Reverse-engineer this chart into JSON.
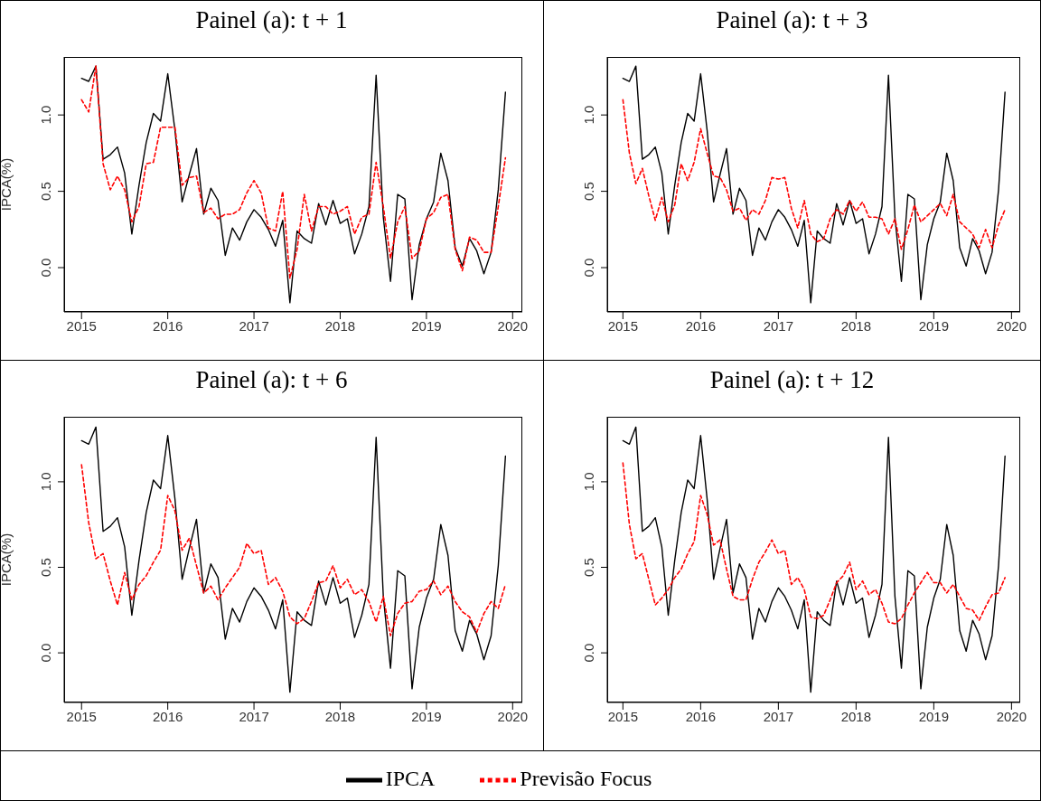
{
  "chart_data": [
    {
      "type": "line",
      "title": "Painel (a): t + 1",
      "ylabel": "IPCA(%)",
      "legend": "bottom",
      "marker": "none",
      "x": [
        "2015-01",
        "2015-02",
        "2015-03",
        "2015-04",
        "2015-05",
        "2015-06",
        "2015-07",
        "2015-08",
        "2015-09",
        "2015-10",
        "2015-11",
        "2015-12",
        "2016-01",
        "2016-02",
        "2016-03",
        "2016-04",
        "2016-05",
        "2016-06",
        "2016-07",
        "2016-08",
        "2016-09",
        "2016-10",
        "2016-11",
        "2016-12",
        "2017-01",
        "2017-02",
        "2017-03",
        "2017-04",
        "2017-05",
        "2017-06",
        "2017-07",
        "2017-08",
        "2017-09",
        "2017-10",
        "2017-11",
        "2017-12",
        "2018-01",
        "2018-02",
        "2018-03",
        "2018-04",
        "2018-05",
        "2018-06",
        "2018-07",
        "2018-08",
        "2018-09",
        "2018-10",
        "2018-11",
        "2018-12",
        "2019-01",
        "2019-02",
        "2019-03",
        "2019-04",
        "2019-05",
        "2019-06",
        "2019-07",
        "2019-08",
        "2019-09",
        "2019-10",
        "2019-11",
        "2019-12"
      ],
      "xlim": [
        "2014-10-19",
        "2020-02-11"
      ],
      "xticks": [
        "2015",
        "2016",
        "2017",
        "2018",
        "2019",
        "2020"
      ],
      "ylim": [
        -0.29,
        1.38
      ],
      "yticks": [
        {
          "value": 0,
          "label": "0.0"
        },
        {
          "value": 0.5,
          "label": "0.5"
        },
        {
          "value": 1,
          "label": "1.0"
        }
      ],
      "series": [
        {
          "name": "IPCA",
          "color": "#000000",
          "line_style": "solid",
          "values": [
            1.24,
            1.22,
            1.32,
            0.71,
            0.74,
            0.79,
            0.62,
            0.22,
            0.54,
            0.82,
            1.01,
            0.96,
            1.27,
            0.9,
            0.43,
            0.61,
            0.78,
            0.35,
            0.52,
            0.44,
            0.08,
            0.26,
            0.18,
            0.3,
            0.38,
            0.33,
            0.25,
            0.14,
            0.31,
            -0.23,
            0.24,
            0.19,
            0.16,
            0.42,
            0.28,
            0.44,
            0.29,
            0.32,
            0.09,
            0.22,
            0.4,
            1.26,
            0.33,
            -0.09,
            0.48,
            0.45,
            -0.21,
            0.15,
            0.32,
            0.43,
            0.75,
            0.57,
            0.13,
            0.01,
            0.19,
            0.11,
            -0.04,
            0.1,
            0.51,
            1.15
          ]
        },
        {
          "name": "Previsão Focus",
          "color": "#ff0000",
          "line_style": "dashed",
          "values": [
            1.1,
            1.02,
            1.32,
            0.68,
            0.51,
            0.6,
            0.51,
            0.3,
            0.4,
            0.68,
            0.69,
            0.92,
            0.92,
            0.92,
            0.54,
            0.59,
            0.6,
            0.36,
            0.39,
            0.32,
            0.35,
            0.35,
            0.38,
            0.49,
            0.57,
            0.49,
            0.26,
            0.24,
            0.5,
            -0.07,
            0.12,
            0.48,
            0.24,
            0.4,
            0.4,
            0.35,
            0.37,
            0.4,
            0.22,
            0.33,
            0.35,
            0.69,
            0.4,
            0.06,
            0.3,
            0.4,
            0.06,
            0.11,
            0.32,
            0.36,
            0.46,
            0.48,
            0.12,
            -0.02,
            0.2,
            0.18,
            0.1,
            0.1,
            0.4,
            0.72
          ]
        }
      ]
    },
    {
      "type": "line",
      "title": "Painel (a): t + 3",
      "marker": "none",
      "x": [
        "2015-01",
        "2015-02",
        "2015-03",
        "2015-04",
        "2015-05",
        "2015-06",
        "2015-07",
        "2015-08",
        "2015-09",
        "2015-10",
        "2015-11",
        "2015-12",
        "2016-01",
        "2016-02",
        "2016-03",
        "2016-04",
        "2016-05",
        "2016-06",
        "2016-07",
        "2016-08",
        "2016-09",
        "2016-10",
        "2016-11",
        "2016-12",
        "2017-01",
        "2017-02",
        "2017-03",
        "2017-04",
        "2017-05",
        "2017-06",
        "2017-07",
        "2017-08",
        "2017-09",
        "2017-10",
        "2017-11",
        "2017-12",
        "2018-01",
        "2018-02",
        "2018-03",
        "2018-04",
        "2018-05",
        "2018-06",
        "2018-07",
        "2018-08",
        "2018-09",
        "2018-10",
        "2018-11",
        "2018-12",
        "2019-01",
        "2019-02",
        "2019-03",
        "2019-04",
        "2019-05",
        "2019-06",
        "2019-07",
        "2019-08",
        "2019-09",
        "2019-10",
        "2019-11",
        "2019-12"
      ],
      "xlim": [
        "2014-10-19",
        "2020-02-11"
      ],
      "xticks": [
        "2015",
        "2016",
        "2017",
        "2018",
        "2019",
        "2020"
      ],
      "ylim": [
        -0.29,
        1.38
      ],
      "yticks": [
        {
          "value": 0,
          "label": "0.0"
        },
        {
          "value": 0.5,
          "label": "0.5"
        },
        {
          "value": 1,
          "label": "1.0"
        }
      ],
      "series": [
        {
          "color": "#000000",
          "line_style": "solid",
          "values": [
            1.24,
            1.22,
            1.32,
            0.71,
            0.74,
            0.79,
            0.62,
            0.22,
            0.54,
            0.82,
            1.01,
            0.96,
            1.27,
            0.9,
            0.43,
            0.61,
            0.78,
            0.35,
            0.52,
            0.44,
            0.08,
            0.26,
            0.18,
            0.3,
            0.38,
            0.33,
            0.25,
            0.14,
            0.31,
            -0.23,
            0.24,
            0.19,
            0.16,
            0.42,
            0.28,
            0.44,
            0.29,
            0.32,
            0.09,
            0.22,
            0.4,
            1.26,
            0.33,
            -0.09,
            0.48,
            0.45,
            -0.21,
            0.15,
            0.32,
            0.43,
            0.75,
            0.57,
            0.13,
            0.01,
            0.19,
            0.11,
            -0.04,
            0.1,
            0.51,
            1.15
          ]
        },
        {
          "color": "#ff0000",
          "line_style": "dashed",
          "values": [
            1.1,
            0.75,
            0.55,
            0.65,
            0.47,
            0.31,
            0.46,
            0.3,
            0.41,
            0.68,
            0.57,
            0.69,
            0.91,
            0.75,
            0.6,
            0.59,
            0.51,
            0.37,
            0.39,
            0.31,
            0.38,
            0.35,
            0.44,
            0.59,
            0.58,
            0.59,
            0.39,
            0.26,
            0.44,
            0.22,
            0.17,
            0.19,
            0.32,
            0.38,
            0.35,
            0.44,
            0.37,
            0.43,
            0.33,
            0.33,
            0.32,
            0.22,
            0.32,
            0.12,
            0.25,
            0.41,
            0.3,
            0.34,
            0.38,
            0.42,
            0.34,
            0.48,
            0.3,
            0.26,
            0.22,
            0.13,
            0.25,
            0.13,
            0.28,
            0.38
          ]
        }
      ]
    },
    {
      "type": "line",
      "title": "Painel (a): t + 6",
      "ylabel": "IPCA(%)",
      "marker": "none",
      "x": [
        "2015-01",
        "2015-02",
        "2015-03",
        "2015-04",
        "2015-05",
        "2015-06",
        "2015-07",
        "2015-08",
        "2015-09",
        "2015-10",
        "2015-11",
        "2015-12",
        "2016-01",
        "2016-02",
        "2016-03",
        "2016-04",
        "2016-05",
        "2016-06",
        "2016-07",
        "2016-08",
        "2016-09",
        "2016-10",
        "2016-11",
        "2016-12",
        "2017-01",
        "2017-02",
        "2017-03",
        "2017-04",
        "2017-05",
        "2017-06",
        "2017-07",
        "2017-08",
        "2017-09",
        "2017-10",
        "2017-11",
        "2017-12",
        "2018-01",
        "2018-02",
        "2018-03",
        "2018-04",
        "2018-05",
        "2018-06",
        "2018-07",
        "2018-08",
        "2018-09",
        "2018-10",
        "2018-11",
        "2018-12",
        "2019-01",
        "2019-02",
        "2019-03",
        "2019-04",
        "2019-05",
        "2019-06",
        "2019-07",
        "2019-08",
        "2019-09",
        "2019-10",
        "2019-11",
        "2019-12"
      ],
      "xlim": [
        "2014-10-19",
        "2020-02-11"
      ],
      "xticks": [
        "2015",
        "2016",
        "2017",
        "2018",
        "2019",
        "2020"
      ],
      "ylim": [
        -0.29,
        1.38
      ],
      "yticks": [
        {
          "value": 0,
          "label": "0.0"
        },
        {
          "value": 0.5,
          "label": "0.5"
        },
        {
          "value": 1,
          "label": "1.0"
        }
      ],
      "series": [
        {
          "color": "#000000",
          "line_style": "solid",
          "values": [
            1.24,
            1.22,
            1.32,
            0.71,
            0.74,
            0.79,
            0.62,
            0.22,
            0.54,
            0.82,
            1.01,
            0.96,
            1.27,
            0.9,
            0.43,
            0.61,
            0.78,
            0.35,
            0.52,
            0.44,
            0.08,
            0.26,
            0.18,
            0.3,
            0.38,
            0.33,
            0.25,
            0.14,
            0.31,
            -0.23,
            0.24,
            0.19,
            0.16,
            0.42,
            0.28,
            0.44,
            0.29,
            0.32,
            0.09,
            0.22,
            0.4,
            1.26,
            0.33,
            -0.09,
            0.48,
            0.45,
            -0.21,
            0.15,
            0.32,
            0.43,
            0.75,
            0.57,
            0.13,
            0.01,
            0.19,
            0.11,
            -0.04,
            0.1,
            0.51,
            1.15
          ]
        },
        {
          "color": "#ff0000",
          "line_style": "dashed",
          "values": [
            1.1,
            0.76,
            0.55,
            0.58,
            0.42,
            0.28,
            0.47,
            0.31,
            0.4,
            0.45,
            0.53,
            0.6,
            0.92,
            0.83,
            0.6,
            0.67,
            0.51,
            0.35,
            0.39,
            0.31,
            0.38,
            0.44,
            0.5,
            0.64,
            0.58,
            0.6,
            0.4,
            0.44,
            0.36,
            0.21,
            0.17,
            0.2,
            0.3,
            0.41,
            0.42,
            0.51,
            0.38,
            0.43,
            0.34,
            0.37,
            0.3,
            0.18,
            0.33,
            0.1,
            0.23,
            0.29,
            0.3,
            0.36,
            0.37,
            0.42,
            0.34,
            0.39,
            0.3,
            0.24,
            0.21,
            0.12,
            0.23,
            0.3,
            0.26,
            0.4
          ]
        }
      ]
    },
    {
      "type": "line",
      "title": "Painel (a): t + 12",
      "marker": "none",
      "x": [
        "2015-01",
        "2015-02",
        "2015-03",
        "2015-04",
        "2015-05",
        "2015-06",
        "2015-07",
        "2015-08",
        "2015-09",
        "2015-10",
        "2015-11",
        "2015-12",
        "2016-01",
        "2016-02",
        "2016-03",
        "2016-04",
        "2016-05",
        "2016-06",
        "2016-07",
        "2016-08",
        "2016-09",
        "2016-10",
        "2016-11",
        "2016-12",
        "2017-01",
        "2017-02",
        "2017-03",
        "2017-04",
        "2017-05",
        "2017-06",
        "2017-07",
        "2017-08",
        "2017-09",
        "2017-10",
        "2017-11",
        "2017-12",
        "2018-01",
        "2018-02",
        "2018-03",
        "2018-04",
        "2018-05",
        "2018-06",
        "2018-07",
        "2018-08",
        "2018-09",
        "2018-10",
        "2018-11",
        "2018-12",
        "2019-01",
        "2019-02",
        "2019-03",
        "2019-04",
        "2019-05",
        "2019-06",
        "2019-07",
        "2019-08",
        "2019-09",
        "2019-10",
        "2019-11",
        "2019-12"
      ],
      "xlim": [
        "2014-10-19",
        "2020-02-11"
      ],
      "xticks": [
        "2015",
        "2016",
        "2017",
        "2018",
        "2019",
        "2020"
      ],
      "ylim": [
        -0.29,
        1.38
      ],
      "yticks": [
        {
          "value": 0,
          "label": "0.0"
        },
        {
          "value": 0.5,
          "label": "0.5"
        },
        {
          "value": 1,
          "label": "1.0"
        }
      ],
      "series": [
        {
          "color": "#000000",
          "line_style": "solid",
          "values": [
            1.24,
            1.22,
            1.32,
            0.71,
            0.74,
            0.79,
            0.62,
            0.22,
            0.54,
            0.82,
            1.01,
            0.96,
            1.27,
            0.9,
            0.43,
            0.61,
            0.78,
            0.35,
            0.52,
            0.44,
            0.08,
            0.26,
            0.18,
            0.3,
            0.38,
            0.33,
            0.25,
            0.14,
            0.31,
            -0.23,
            0.24,
            0.19,
            0.16,
            0.42,
            0.28,
            0.44,
            0.29,
            0.32,
            0.09,
            0.22,
            0.4,
            1.26,
            0.33,
            -0.09,
            0.48,
            0.45,
            -0.21,
            0.15,
            0.32,
            0.43,
            0.75,
            0.57,
            0.13,
            0.01,
            0.19,
            0.11,
            -0.04,
            0.1,
            0.51,
            1.15
          ]
        },
        {
          "color": "#ff0000",
          "line_style": "dashed",
          "values": [
            1.11,
            0.75,
            0.55,
            0.58,
            0.43,
            0.28,
            0.32,
            0.37,
            0.44,
            0.49,
            0.58,
            0.65,
            0.92,
            0.81,
            0.63,
            0.66,
            0.49,
            0.33,
            0.31,
            0.31,
            0.43,
            0.53,
            0.59,
            0.66,
            0.58,
            0.6,
            0.4,
            0.44,
            0.37,
            0.21,
            0.2,
            0.22,
            0.31,
            0.41,
            0.45,
            0.53,
            0.37,
            0.42,
            0.34,
            0.37,
            0.29,
            0.18,
            0.17,
            0.2,
            0.28,
            0.35,
            0.41,
            0.47,
            0.41,
            0.41,
            0.35,
            0.4,
            0.33,
            0.26,
            0.25,
            0.19,
            0.27,
            0.34,
            0.35,
            0.44
          ]
        }
      ]
    }
  ]
}
